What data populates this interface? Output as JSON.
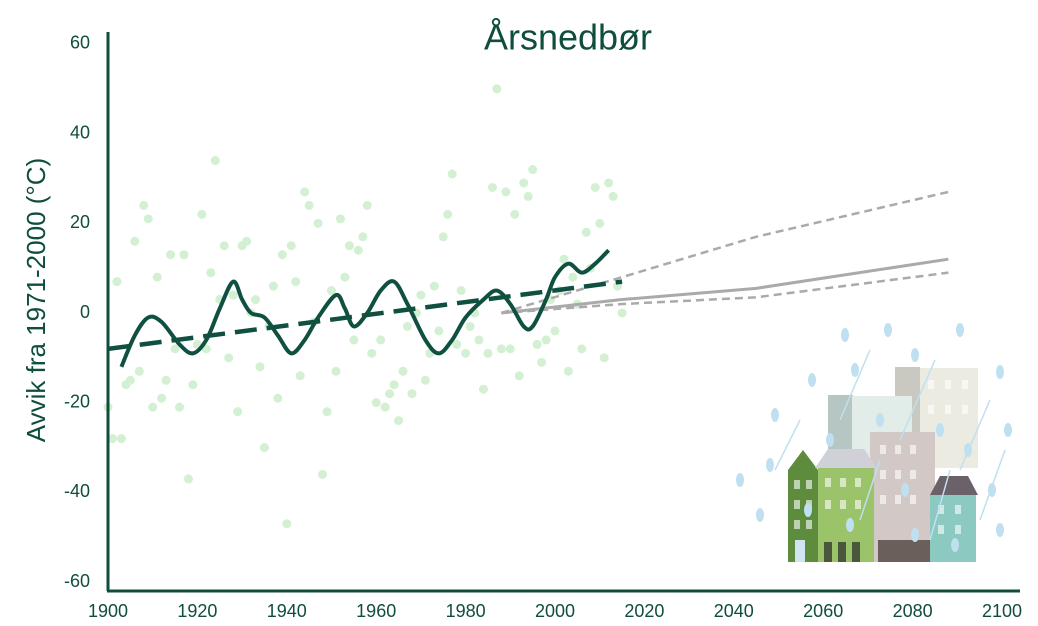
{
  "chart_data": {
    "type": "line",
    "title": "Årsnedbør",
    "y_label": "Avvik fra 1971-2000 (°C)",
    "xlim": [
      1900,
      2100
    ],
    "xticks": [
      1900,
      1920,
      1940,
      1960,
      1980,
      2000,
      2020,
      2040,
      2060,
      2080,
      2100
    ],
    "ylim": [
      -62,
      62
    ],
    "yticks": [
      -60,
      -40,
      -20,
      0,
      20,
      40,
      60
    ],
    "series": [
      {
        "style": "scatter",
        "color": "#d3f0d3",
        "x": [
          1900,
          1901,
          1902,
          1903,
          1904,
          1905,
          1906,
          1907,
          1908,
          1909,
          1910,
          1911,
          1912,
          1913,
          1914,
          1915,
          1916,
          1917,
          1918,
          1919,
          1920,
          1921,
          1922,
          1923,
          1924,
          1925,
          1926,
          1927,
          1928,
          1929,
          1930,
          1931,
          1932,
          1933,
          1934,
          1935,
          1936,
          1937,
          1938,
          1939,
          1940,
          1941,
          1942,
          1943,
          1944,
          1945,
          1946,
          1947,
          1948,
          1949,
          1950,
          1951,
          1952,
          1953,
          1954,
          1955,
          1956,
          1957,
          1958,
          1959,
          1960,
          1961,
          1962,
          1963,
          1964,
          1965,
          1966,
          1967,
          1968,
          1969,
          1970,
          1971,
          1972,
          1973,
          1974,
          1975,
          1976,
          1977,
          1978,
          1979,
          1980,
          1981,
          1982,
          1983,
          1984,
          1985,
          1986,
          1987,
          1988,
          1989,
          1990,
          1991,
          1992,
          1993,
          1994,
          1995,
          1996,
          1997,
          1998,
          1999,
          2000,
          2001,
          2002,
          2003,
          2004,
          2005,
          2006,
          2007,
          2008,
          2009,
          2010,
          2011,
          2012,
          2013,
          2014,
          2015
        ],
        "values": [
          -21,
          -28,
          7,
          -28,
          -16,
          -15,
          16,
          -13,
          24,
          21,
          -21,
          8,
          -19,
          -15,
          13,
          -8,
          -21,
          13,
          -37,
          -16,
          -7,
          22,
          -8,
          9,
          34,
          3,
          15,
          -10,
          4,
          -22,
          15,
          16,
          0,
          3,
          -12,
          -30,
          -3,
          6,
          -19,
          13,
          -47,
          15,
          7,
          -14,
          27,
          24,
          -2,
          20,
          -36,
          -22,
          5,
          -13,
          21,
          8,
          15,
          -6,
          14,
          17,
          24,
          -9,
          -20,
          -6,
          -21,
          -18,
          -16,
          -24,
          -13,
          -3,
          -18,
          0,
          4,
          -15,
          -9,
          6,
          -4,
          17,
          22,
          31,
          -7,
          5,
          -9,
          -3,
          0,
          -6,
          -17,
          -9,
          28,
          50,
          -8,
          27,
          -8,
          22,
          -14,
          29,
          26,
          32,
          -7,
          -11,
          -6,
          3,
          -4,
          5,
          12,
          -13,
          8,
          2,
          -8,
          18,
          10,
          28,
          20,
          -10,
          29,
          26,
          6,
          0
        ]
      },
      {
        "style": "smooth",
        "color": "#0f5040",
        "x": [
          1903,
          1906,
          1909,
          1912,
          1916,
          1919,
          1922,
          1925,
          1928,
          1930,
          1932,
          1935,
          1938,
          1941,
          1944,
          1947,
          1951,
          1953,
          1955,
          1958,
          1961,
          1964,
          1967,
          1971,
          1974,
          1977,
          1980,
          1984,
          1987,
          1990,
          1993,
          1995,
          1998,
          2000,
          2003,
          2006,
          2009,
          2012
        ],
        "values": [
          -12,
          -5,
          -1,
          -2,
          -7,
          -9,
          -6,
          1,
          7,
          3,
          0,
          -1,
          -5,
          -9,
          -6,
          -1,
          4,
          1,
          -3,
          0,
          5,
          7,
          2,
          -6,
          -9,
          -6,
          -1,
          3,
          5,
          2,
          -3,
          -3,
          3,
          8,
          11,
          9,
          11,
          14
        ]
      },
      {
        "style": "dashed",
        "color": "#0f5040",
        "x": [
          1900,
          2015
        ],
        "values": [
          -8,
          7
        ]
      },
      {
        "style": "projection-dashed",
        "color": "#aaaaaa",
        "x": [
          1988,
          2015,
          2045,
          2088
        ],
        "values": [
          0,
          8,
          17,
          27
        ]
      },
      {
        "style": "projection",
        "color": "#aaaaaa",
        "x": [
          1988,
          2015,
          2045,
          2088
        ],
        "values": [
          0,
          3,
          5.5,
          12
        ]
      },
      {
        "style": "projection-dashed",
        "color": "#aaaaaa",
        "x": [
          1988,
          2015,
          2045,
          2088
        ],
        "values": [
          0,
          2,
          3.5,
          9
        ]
      }
    ]
  }
}
